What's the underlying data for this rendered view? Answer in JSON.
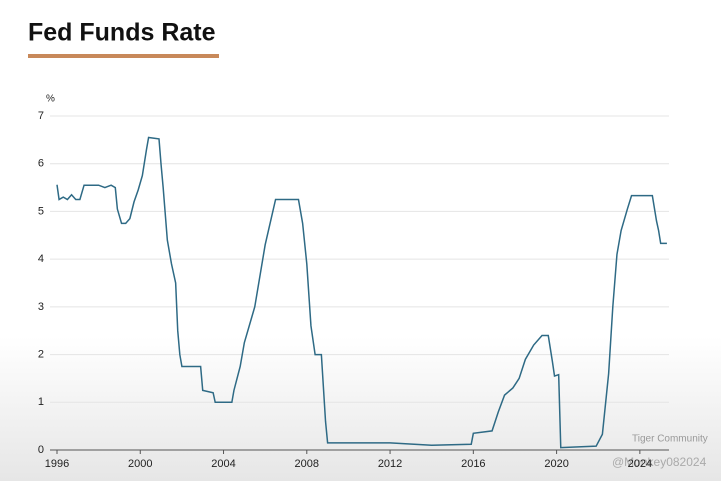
{
  "chart_data": {
    "type": "line",
    "title": "Fed Funds Rate",
    "y_label": "%",
    "annotations": [
      "Tiger Community",
      "@Monkey082024"
    ],
    "xlim": [
      1996,
      2025.4
    ],
    "xticks": [
      1996,
      2000,
      2004,
      2008,
      2012,
      2016,
      2020,
      2024
    ],
    "ylim": [
      0,
      7
    ],
    "yticks": [
      0,
      1,
      2,
      3,
      4,
      5,
      6,
      7
    ],
    "grid": true,
    "x": [
      1996.0,
      1996.1,
      1996.3,
      1996.5,
      1996.7,
      1996.9,
      1997.1,
      1997.3,
      1997.6,
      1998.0,
      1998.3,
      1998.6,
      1998.8,
      1998.9,
      1999.1,
      1999.3,
      1999.5,
      1999.7,
      1999.9,
      2000.1,
      2000.3,
      2000.4,
      2000.9,
      2001.0,
      2001.1,
      2001.3,
      2001.5,
      2001.7,
      2001.8,
      2001.9,
      2002.0,
      2002.9,
      2003.0,
      2003.5,
      2003.6,
      2004.4,
      2004.5,
      2004.8,
      2005.0,
      2005.5,
      2006.0,
      2006.5,
      2007.6,
      2007.8,
      2008.0,
      2008.2,
      2008.4,
      2008.7,
      2008.9,
      2009.0,
      2010.0,
      2012.0,
      2014.0,
      2015.9,
      2016.0,
      2016.9,
      2017.2,
      2017.5,
      2017.9,
      2018.2,
      2018.5,
      2018.9,
      2019.3,
      2019.6,
      2019.8,
      2019.9,
      2020.1,
      2020.2,
      2021.9,
      2022.2,
      2022.5,
      2022.7,
      2022.9,
      2023.1,
      2023.4,
      2023.6,
      2024.6,
      2024.8,
      2024.9,
      2025.0,
      2025.3
    ],
    "series": [
      {
        "name": "Fed Funds Rate",
        "color": "#2e6a85",
        "values": [
          5.56,
          5.25,
          5.3,
          5.25,
          5.35,
          5.25,
          5.25,
          5.55,
          5.55,
          5.55,
          5.5,
          5.55,
          5.5,
          5.05,
          4.75,
          4.75,
          4.85,
          5.2,
          5.45,
          5.75,
          6.3,
          6.55,
          6.52,
          5.98,
          5.5,
          4.4,
          3.9,
          3.5,
          2.5,
          2.0,
          1.75,
          1.75,
          1.25,
          1.2,
          1.0,
          1.0,
          1.25,
          1.75,
          2.25,
          3.0,
          4.3,
          5.25,
          5.25,
          4.75,
          3.9,
          2.6,
          2.0,
          2.0,
          0.6,
          0.15,
          0.15,
          0.15,
          0.1,
          0.12,
          0.35,
          0.4,
          0.8,
          1.15,
          1.3,
          1.5,
          1.9,
          2.2,
          2.4,
          2.4,
          1.85,
          1.55,
          1.58,
          0.05,
          0.08,
          0.33,
          1.6,
          3.0,
          4.1,
          4.6,
          5.05,
          5.33,
          5.33,
          4.8,
          4.6,
          4.33,
          4.33
        ]
      }
    ]
  }
}
